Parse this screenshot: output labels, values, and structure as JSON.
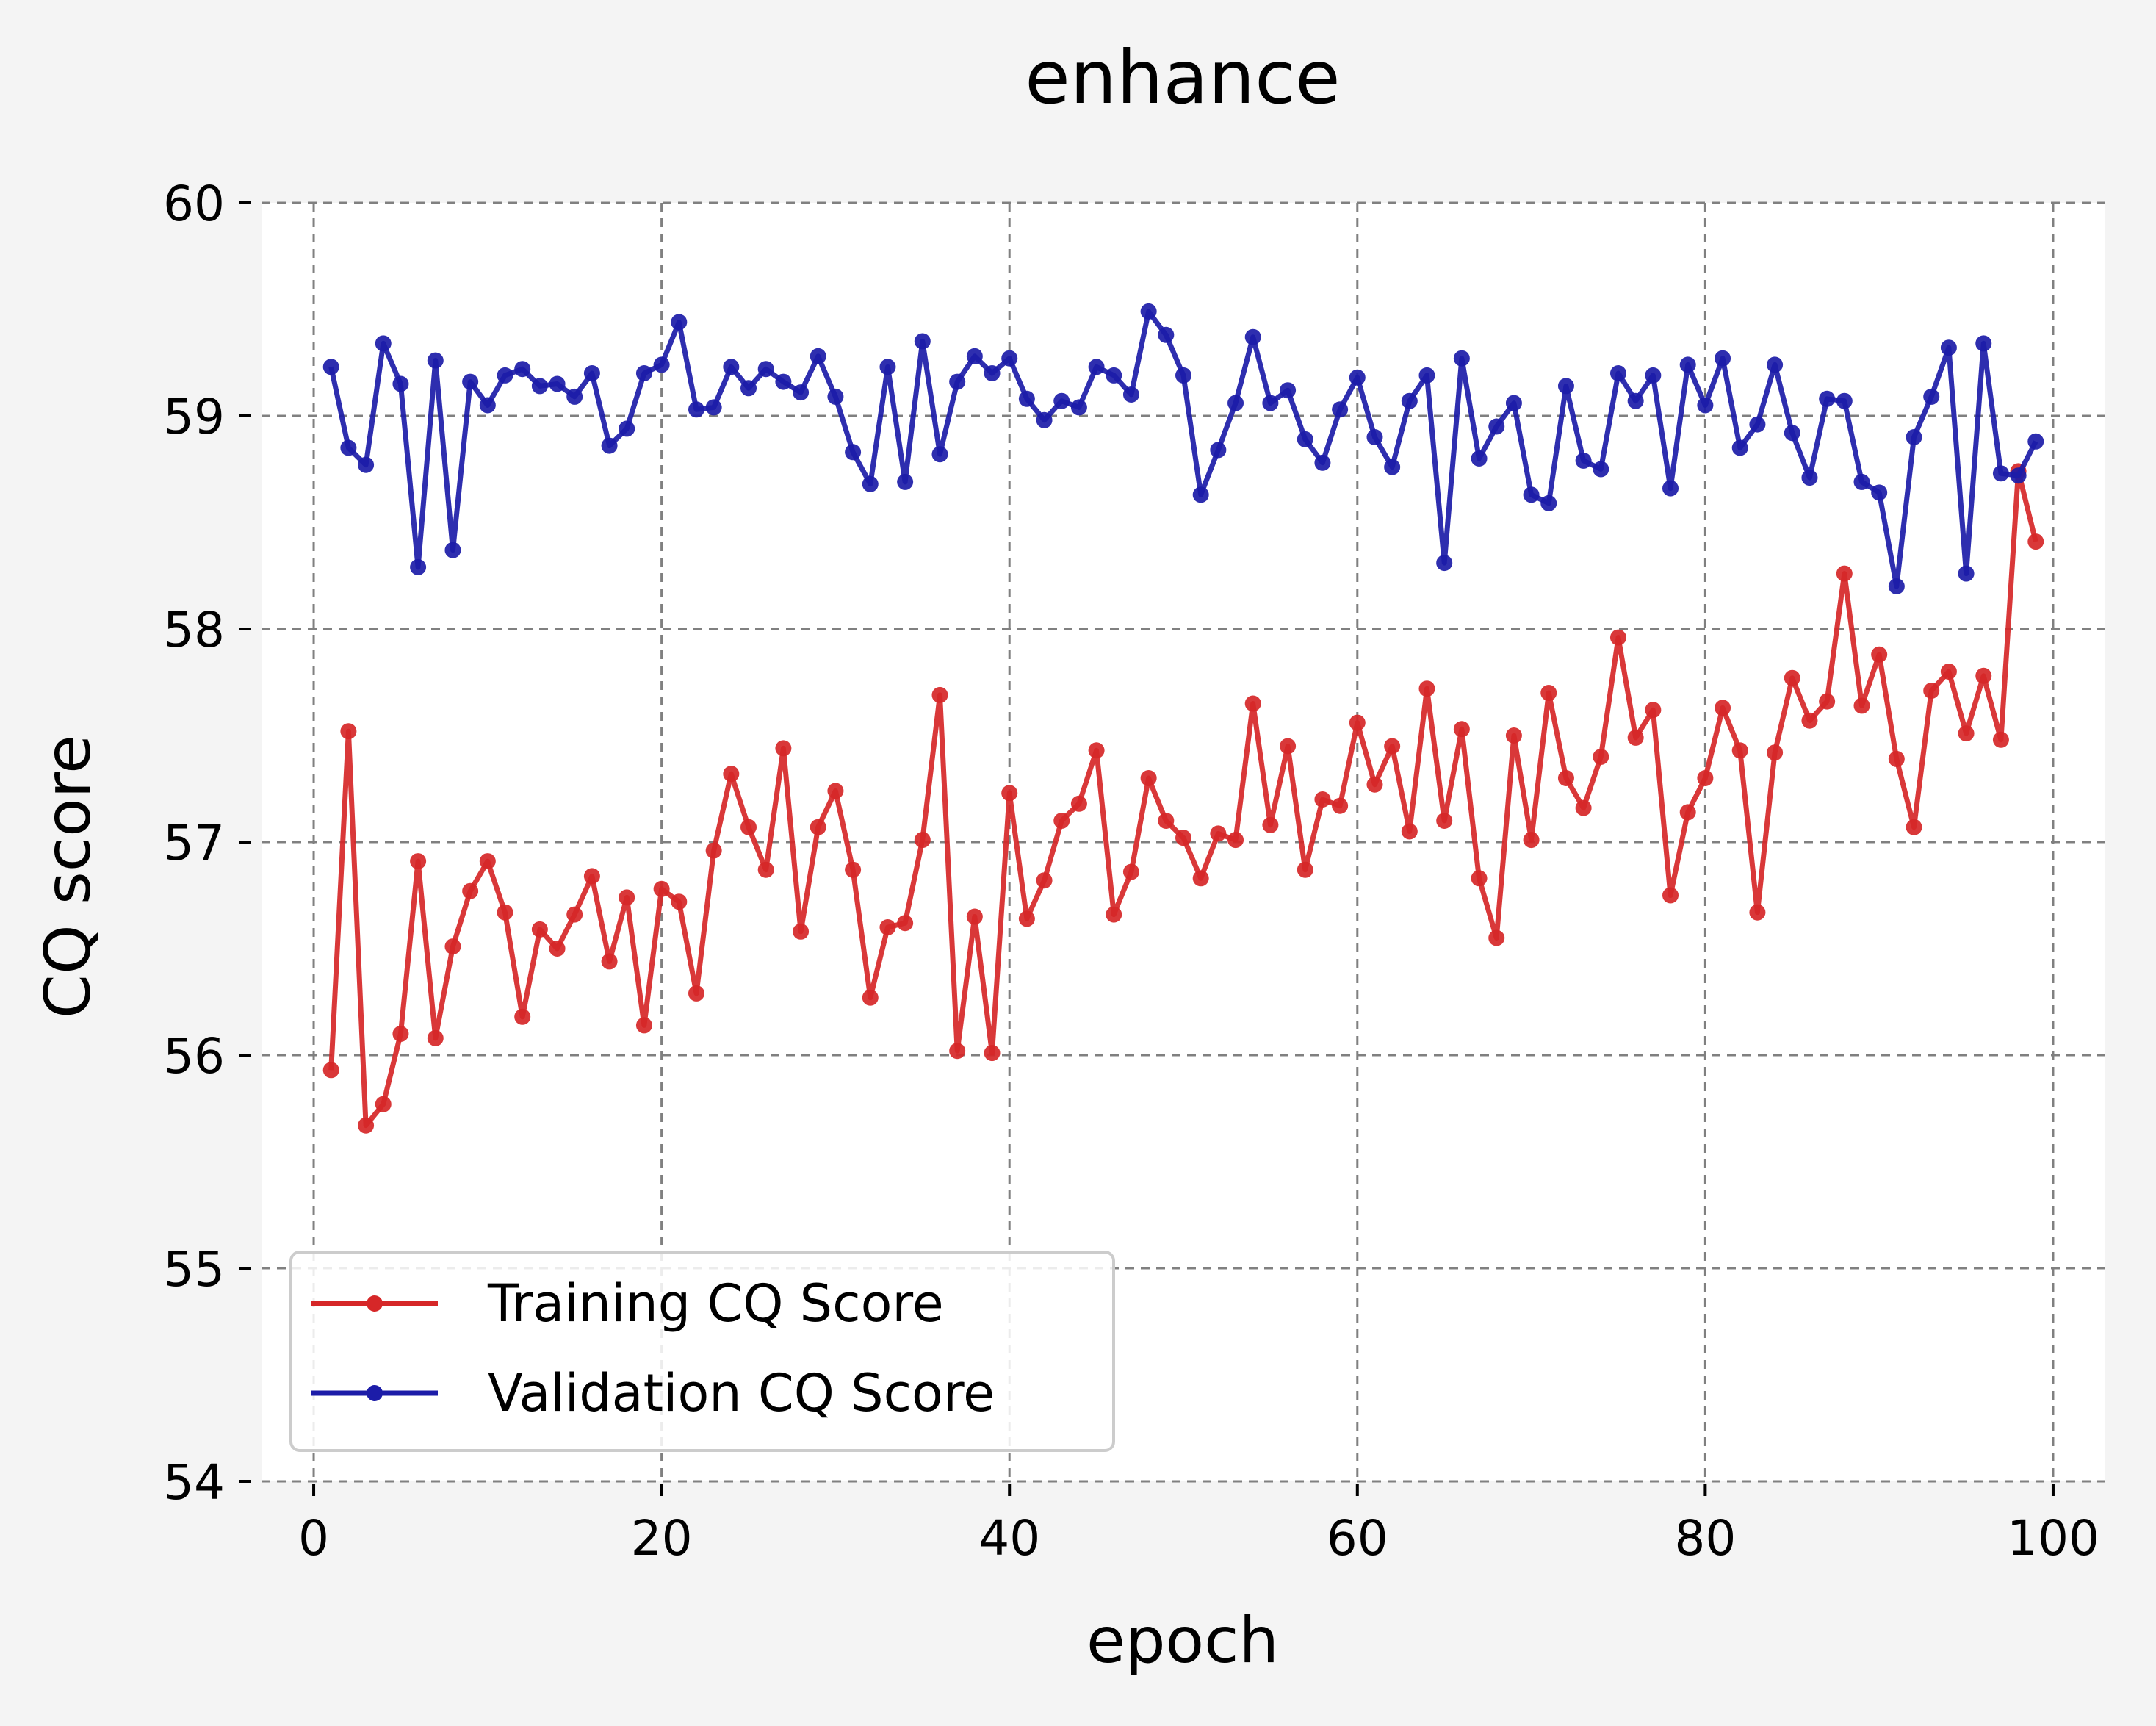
{
  "chart_data": {
    "type": "line",
    "title": "enhance",
    "xlabel": "epoch",
    "ylabel": "CQ score",
    "xlim": [
      -3,
      103
    ],
    "ylim": [
      54,
      60
    ],
    "xticks": [
      0,
      20,
      40,
      60,
      80,
      100
    ],
    "yticks": [
      54,
      55,
      56,
      57,
      58,
      59,
      60
    ],
    "grid": true,
    "legend_position": "lower-left",
    "x": [
      1,
      2,
      3,
      4,
      5,
      6,
      7,
      8,
      9,
      10,
      11,
      12,
      13,
      14,
      15,
      16,
      17,
      18,
      19,
      20,
      21,
      22,
      23,
      24,
      25,
      26,
      27,
      28,
      29,
      30,
      31,
      32,
      33,
      34,
      35,
      36,
      37,
      38,
      39,
      40,
      41,
      42,
      43,
      44,
      45,
      46,
      47,
      48,
      49,
      50,
      51,
      52,
      53,
      54,
      55,
      56,
      57,
      58,
      59,
      60,
      61,
      62,
      63,
      64,
      65,
      66,
      67,
      68,
      69,
      70,
      71,
      72,
      73,
      74,
      75,
      76,
      77,
      78,
      79,
      80,
      81,
      82,
      83,
      84,
      85,
      86,
      87,
      88,
      89,
      90,
      91,
      92,
      93,
      94,
      95,
      96,
      97,
      98,
      99
    ],
    "series": [
      {
        "name": "Training CQ Score",
        "color": "#d62728",
        "values": [
          55.93,
          57.52,
          55.67,
          55.77,
          56.1,
          56.91,
          56.08,
          56.51,
          56.77,
          56.91,
          56.67,
          56.18,
          56.59,
          56.5,
          56.66,
          56.84,
          56.44,
          56.74,
          56.14,
          56.78,
          56.72,
          56.29,
          56.96,
          57.32,
          57.07,
          56.87,
          57.44,
          56.58,
          57.07,
          57.24,
          56.87,
          56.27,
          56.6,
          56.62,
          57.01,
          57.69,
          56.02,
          56.65,
          56.01,
          57.23,
          56.64,
          56.82,
          57.1,
          57.18,
          57.43,
          56.66,
          56.86,
          57.3,
          57.1,
          57.02,
          56.83,
          57.04,
          57.01,
          57.65,
          57.08,
          57.45,
          56.87,
          57.2,
          57.17,
          57.56,
          57.27,
          57.45,
          57.05,
          57.72,
          57.1,
          57.53,
          56.83,
          56.55,
          57.5,
          57.01,
          57.7,
          57.3,
          57.16,
          57.4,
          57.96,
          57.49,
          57.62,
          56.75,
          57.14,
          57.3,
          57.63,
          57.43,
          56.67,
          57.42,
          57.77,
          57.57,
          57.66,
          58.26,
          57.64,
          57.88,
          57.39,
          57.07,
          57.71,
          57.8,
          57.51,
          57.78,
          57.48,
          58.74,
          58.41
        ]
      },
      {
        "name": "Validation CQ Score",
        "color": "#1c1ca8",
        "values": [
          59.23,
          58.85,
          58.77,
          59.34,
          59.15,
          58.29,
          59.26,
          58.37,
          59.16,
          59.05,
          59.19,
          59.22,
          59.14,
          59.15,
          59.09,
          59.2,
          58.86,
          58.94,
          59.2,
          59.24,
          59.44,
          59.03,
          59.04,
          59.23,
          59.13,
          59.22,
          59.16,
          59.11,
          59.28,
          59.09,
          58.83,
          58.68,
          59.23,
          58.69,
          59.35,
          58.82,
          59.16,
          59.28,
          59.2,
          59.27,
          59.08,
          58.98,
          59.07,
          59.04,
          59.23,
          59.19,
          59.1,
          59.49,
          59.38,
          59.19,
          58.63,
          58.84,
          59.06,
          59.37,
          59.06,
          59.12,
          58.89,
          58.78,
          59.03,
          59.18,
          58.9,
          58.76,
          59.07,
          59.19,
          58.31,
          59.27,
          58.8,
          58.95,
          59.06,
          58.63,
          58.59,
          59.14,
          58.79,
          58.75,
          59.2,
          59.07,
          59.19,
          58.66,
          59.24,
          59.05,
          59.27,
          58.85,
          58.96,
          59.24,
          58.92,
          58.71,
          59.08,
          59.07,
          58.69,
          58.64,
          58.2,
          58.9,
          59.09,
          59.32,
          58.26,
          59.34,
          58.73,
          58.72,
          58.88
        ]
      }
    ]
  }
}
